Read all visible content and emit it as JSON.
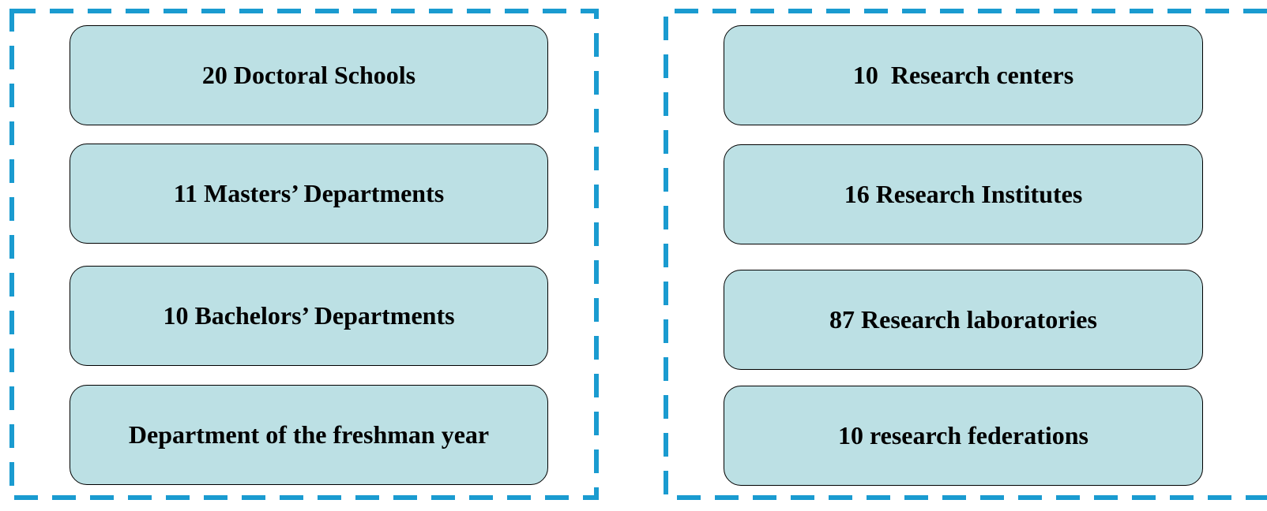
{
  "panels": [
    {
      "boxes": [
        {
          "label": "20 Doctoral Schools"
        },
        {
          "label": "11 Masters’ Departments"
        },
        {
          "label": "10 Bachelors’ Departments"
        },
        {
          "label": "Department of the freshman year"
        }
      ]
    },
    {
      "boxes": [
        {
          "label": "10  Research centers"
        },
        {
          "label": "16 Research Institutes"
        },
        {
          "label": "87 Research laboratories"
        },
        {
          "label": "10 research federations"
        }
      ]
    }
  ]
}
